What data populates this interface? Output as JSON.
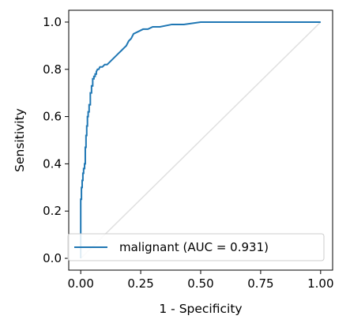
{
  "chart_data": {
    "type": "line",
    "title": "",
    "xlabel": "1 - Specificity",
    "ylabel": "Sensitivity",
    "xlim": [
      -0.05,
      1.05
    ],
    "ylim": [
      -0.05,
      1.05
    ],
    "xticks": [
      0.0,
      0.25,
      0.5,
      0.75,
      1.0
    ],
    "xtick_labels": [
      "0.00",
      "0.25",
      "0.50",
      "0.75",
      "1.00"
    ],
    "yticks": [
      0.0,
      0.2,
      0.4,
      0.6,
      0.8,
      1.0
    ],
    "ytick_labels": [
      "0.0",
      "0.2",
      "0.4",
      "0.6",
      "0.8",
      "1.0"
    ],
    "grid": false,
    "legend_position": "lower-right",
    "series": [
      {
        "name": "malignant (AUC = 0.931)",
        "color": "#1f77b4",
        "x": [
          0.0,
          0.0,
          0.003,
          0.003,
          0.006,
          0.006,
          0.009,
          0.009,
          0.012,
          0.012,
          0.016,
          0.016,
          0.019,
          0.019,
          0.022,
          0.022,
          0.025,
          0.025,
          0.028,
          0.028,
          0.031,
          0.031,
          0.035,
          0.035,
          0.04,
          0.04,
          0.045,
          0.045,
          0.05,
          0.05,
          0.055,
          0.055,
          0.06,
          0.06,
          0.065,
          0.065,
          0.07,
          0.075,
          0.08,
          0.09,
          0.1,
          0.11,
          0.12,
          0.13,
          0.14,
          0.15,
          0.16,
          0.17,
          0.18,
          0.19,
          0.2,
          0.21,
          0.22,
          0.24,
          0.26,
          0.28,
          0.3,
          0.33,
          0.38,
          0.43,
          0.5,
          0.6,
          0.7,
          0.8,
          0.9,
          1.0
        ],
        "y": [
          0.0,
          0.25,
          0.25,
          0.3,
          0.3,
          0.33,
          0.33,
          0.36,
          0.36,
          0.38,
          0.38,
          0.4,
          0.4,
          0.47,
          0.47,
          0.52,
          0.52,
          0.56,
          0.56,
          0.6,
          0.6,
          0.62,
          0.62,
          0.65,
          0.65,
          0.7,
          0.7,
          0.73,
          0.73,
          0.76,
          0.76,
          0.77,
          0.77,
          0.78,
          0.78,
          0.79,
          0.8,
          0.8,
          0.81,
          0.81,
          0.82,
          0.82,
          0.83,
          0.84,
          0.85,
          0.86,
          0.87,
          0.88,
          0.89,
          0.9,
          0.92,
          0.93,
          0.95,
          0.96,
          0.97,
          0.97,
          0.98,
          0.98,
          0.99,
          0.99,
          1.0,
          1.0,
          1.0,
          1.0,
          1.0,
          1.0
        ]
      },
      {
        "name": "",
        "color": "#e0e0e0",
        "x": [
          0.0,
          1.0
        ],
        "y": [
          0.0,
          1.0
        ]
      }
    ]
  }
}
